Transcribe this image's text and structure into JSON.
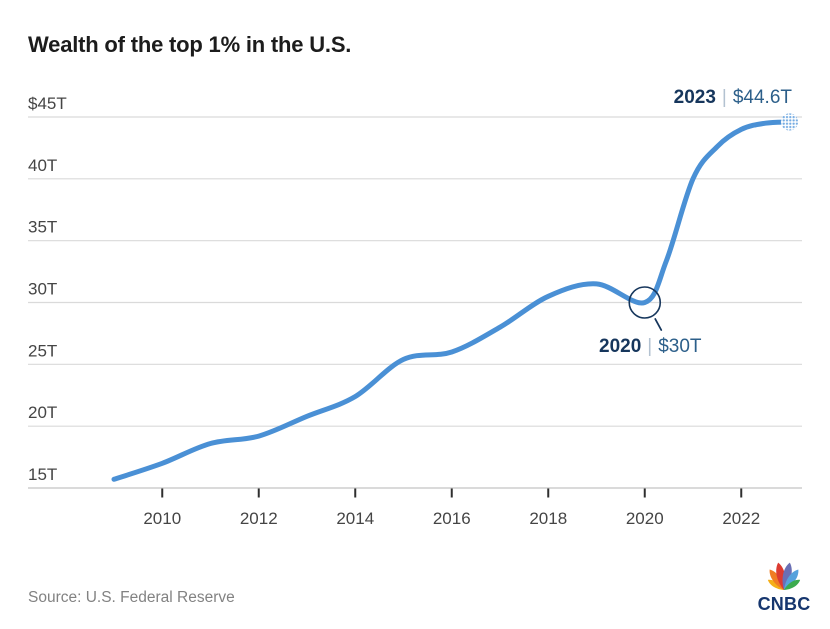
{
  "header": {
    "title": "Wealth of the top 1% in the U.S."
  },
  "chart_data": {
    "type": "line",
    "title": "Wealth of the top 1% in the U.S.",
    "ylabel_unit": "trillions of U.S. dollars",
    "x": [
      2009,
      2010,
      2011,
      2012,
      2013,
      2014,
      2015,
      2016,
      2017,
      2018,
      2019,
      2020,
      2020.45,
      2021,
      2021.5,
      2022,
      2022.5,
      2023
    ],
    "values": [
      15.7,
      17.0,
      18.6,
      19.2,
      20.8,
      22.4,
      25.4,
      26.0,
      28.0,
      30.5,
      31.5,
      30.0,
      33.4,
      40.0,
      42.6,
      44.0,
      44.5,
      44.6
    ],
    "xlim": [
      2009,
      2023
    ],
    "ylim": [
      15,
      45
    ],
    "yticks": {
      "values": [
        45,
        40,
        35,
        30,
        25,
        20,
        15
      ],
      "labels": [
        "$45T",
        "40T",
        "35T",
        "30T",
        "25T",
        "20T",
        "15T"
      ]
    },
    "xticks": {
      "values": [
        2010,
        2012,
        2014,
        2016,
        2018,
        2020,
        2022
      ],
      "labels": [
        "2010",
        "2012",
        "2014",
        "2016",
        "2018",
        "2020",
        "2022"
      ]
    },
    "grid": true,
    "legend": "none",
    "annotations": [
      {
        "year": 2023,
        "value": 44.6,
        "label_year": "2023",
        "sep": "|",
        "label_value": "$44.6T",
        "marker": "halftone-dot"
      },
      {
        "year": 2020,
        "value": 30.0,
        "label_year": "2020",
        "sep": "|",
        "label_value": "$30T",
        "marker": "circle-outline"
      }
    ]
  },
  "colors": {
    "line": "#4a90d5",
    "endpoint_dot": "#74abe2",
    "grid": "#dadada",
    "axis": "#c4c4c4",
    "tick": "#2f2f2f",
    "annotation": "#16365c",
    "peacock": [
      "#f5af17",
      "#f07c22",
      "#dc3b31",
      "#6a6fb4",
      "#56a2dc",
      "#3cab4e"
    ]
  },
  "footer": {
    "source": "Source: U.S. Federal Reserve",
    "logo_text": "CNBC"
  }
}
